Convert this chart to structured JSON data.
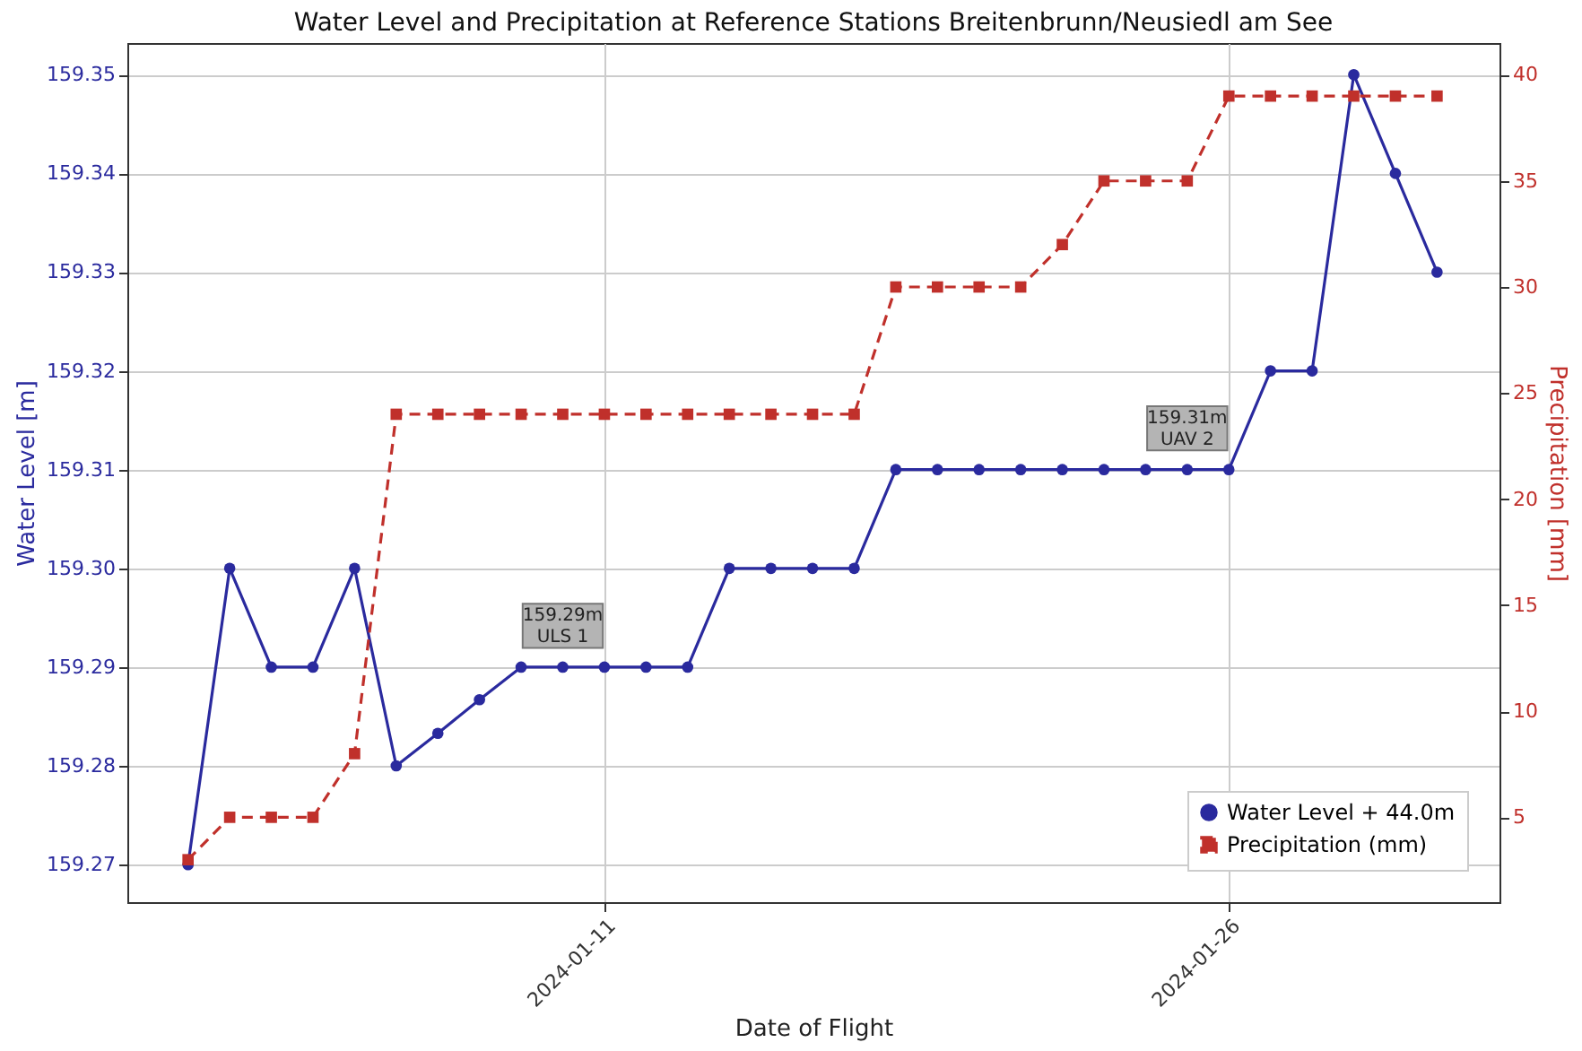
{
  "chart_data": {
    "type": "line",
    "title": "Water Level and Precipitation at Reference Stations Breitenbrunn/Neusiedl am See",
    "xlabel": "Date of Flight",
    "ylabel": "Water Level [m]",
    "y2label": "Precipitation [mm]",
    "x": [
      "2024-01-01",
      "2024-01-02",
      "2024-01-03",
      "2024-01-04",
      "2024-01-05",
      "2024-01-06",
      "2024-01-07",
      "2024-01-08",
      "2024-01-09",
      "2024-01-10",
      "2024-01-11",
      "2024-01-12",
      "2024-01-13",
      "2024-01-14",
      "2024-01-15",
      "2024-01-16",
      "2024-01-17",
      "2024-01-18",
      "2024-01-19",
      "2024-01-20",
      "2024-01-21",
      "2024-01-22",
      "2024-01-23",
      "2024-01-24",
      "2024-01-25",
      "2024-01-26",
      "2024-01-27",
      "2024-01-28",
      "2024-01-29",
      "2024-01-30",
      "2024-01-31"
    ],
    "series": [
      {
        "name": "Water Level + 44.0m",
        "color": "#2a2a9e",
        "marker": "circle",
        "line_style": "solid",
        "values": [
          159.27,
          159.3,
          159.29,
          159.29,
          159.3,
          159.28,
          159.2833,
          159.2867,
          159.29,
          159.29,
          159.29,
          159.29,
          159.29,
          159.3,
          159.3,
          159.3,
          159.3,
          159.31,
          159.31,
          159.31,
          159.31,
          159.31,
          159.31,
          159.31,
          159.31,
          159.31,
          159.32,
          159.32,
          159.35,
          159.34,
          159.33
        ]
      },
      {
        "name": "Precipitation (mm)",
        "color": "#c0302b",
        "marker": "square",
        "line_style": "dashed",
        "axis": "y2",
        "values": [
          3,
          5,
          5,
          5,
          8,
          24,
          24,
          24,
          24,
          24,
          24,
          24,
          24,
          24,
          24,
          24,
          24,
          30,
          30,
          30,
          30,
          32,
          35,
          35,
          35,
          39,
          39,
          39,
          39,
          39,
          39
        ]
      }
    ],
    "xlim": [
      "2023-12-30T13:00",
      "2024-02-01T12:00"
    ],
    "xticks": [
      "2024-01-11",
      "2024-01-26"
    ],
    "ylim": [
      159.2662,
      159.3532
    ],
    "yticks": [
      {
        "value": 159.27,
        "label": "159.27"
      },
      {
        "value": 159.28,
        "label": "159.28"
      },
      {
        "value": 159.29,
        "label": "159.29"
      },
      {
        "value": 159.3,
        "label": "159.30"
      },
      {
        "value": 159.31,
        "label": "159.31"
      },
      {
        "value": 159.32,
        "label": "159.32"
      },
      {
        "value": 159.33,
        "label": "159.33"
      },
      {
        "value": 159.34,
        "label": "159.34"
      },
      {
        "value": 159.35,
        "label": "159.35"
      }
    ],
    "y2lim": [
      1,
      41.5
    ],
    "y2ticks": [
      5,
      10,
      15,
      20,
      25,
      30,
      35,
      40
    ],
    "annotations": [
      {
        "text": "159.29m\nULS 1",
        "x": "2024-01-10",
        "y": 159.29
      },
      {
        "text": "159.31m\nUAV 2",
        "x": "2024-01-25",
        "y": 159.31
      }
    ],
    "grid": true,
    "legend": "bottom right"
  }
}
